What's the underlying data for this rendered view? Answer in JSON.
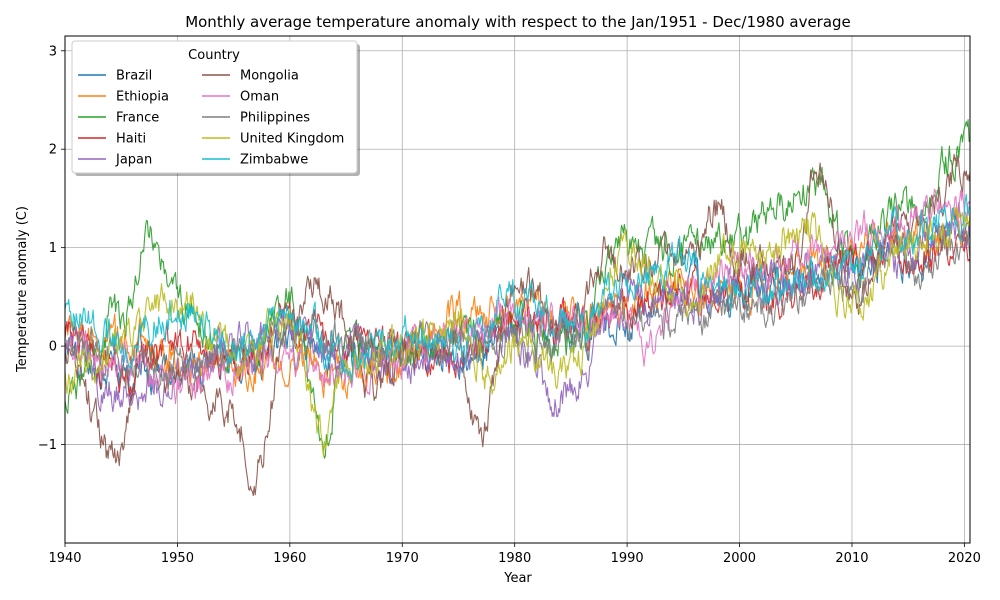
{
  "chart_data": {
    "type": "line",
    "title": "Monthly average temperature anomaly with respect to the Jan/1951 - Dec/1980 average",
    "xlabel": "Year",
    "ylabel": "Temperature anomaly (C)",
    "xlim": [
      1940,
      2020.5
    ],
    "ylim": [
      -2,
      3.15
    ],
    "xticks": [
      1940,
      1950,
      1960,
      1970,
      1980,
      1990,
      2000,
      2010,
      2020
    ],
    "yticks": [
      -1,
      0,
      1,
      2,
      3
    ],
    "grid": true,
    "legend": {
      "title": "Country",
      "position": "top-left",
      "columns": 2
    },
    "series": [
      {
        "name": "Brazil",
        "color": "#1f77b4",
        "keypoints": [
          [
            1940,
            -0.1
          ],
          [
            1945,
            -0.3
          ],
          [
            1950,
            -0.25
          ],
          [
            1955,
            -0.2
          ],
          [
            1960,
            0.05
          ],
          [
            1965,
            -0.15
          ],
          [
            1970,
            -0.05
          ],
          [
            1975,
            -0.15
          ],
          [
            1980,
            0.1
          ],
          [
            1985,
            0.15
          ],
          [
            1990,
            0.3
          ],
          [
            1995,
            0.6
          ],
          [
            2000,
            0.55
          ],
          [
            2005,
            0.75
          ],
          [
            2010,
            0.85
          ],
          [
            2015,
            0.9
          ],
          [
            2020,
            1.2
          ]
        ]
      },
      {
        "name": "Ethiopia",
        "color": "#ff7f0e",
        "keypoints": [
          [
            1940,
            0.2
          ],
          [
            1945,
            0.1
          ],
          [
            1950,
            -0.1
          ],
          [
            1955,
            -0.2
          ],
          [
            1960,
            -0.1
          ],
          [
            1965,
            -0.3
          ],
          [
            1970,
            -0.2
          ],
          [
            1975,
            0.3
          ],
          [
            1980,
            0.4
          ],
          [
            1985,
            0.3
          ],
          [
            1990,
            0.4
          ],
          [
            1995,
            0.6
          ],
          [
            2000,
            0.6
          ],
          [
            2005,
            0.8
          ],
          [
            2010,
            1.0
          ],
          [
            2015,
            1.1
          ],
          [
            2020,
            1.2
          ]
        ]
      },
      {
        "name": "France",
        "color": "#2ca02c",
        "keypoints": [
          [
            1940,
            -0.5
          ],
          [
            1945,
            0.3
          ],
          [
            1947.5,
            1.2
          ],
          [
            1950,
            0.4
          ],
          [
            1955,
            -0.2
          ],
          [
            1960,
            0.4
          ],
          [
            1963,
            -0.9
          ],
          [
            1965,
            0.0
          ],
          [
            1970,
            -0.1
          ],
          [
            1975,
            0.1
          ],
          [
            1980,
            0.2
          ],
          [
            1985,
            0.0
          ],
          [
            1990,
            1.0
          ],
          [
            1995,
            1.0
          ],
          [
            2000,
            1.1
          ],
          [
            2003,
            1.4
          ],
          [
            2007,
            1.6
          ],
          [
            2010,
            0.9
          ],
          [
            2015,
            1.4
          ],
          [
            2020,
            2.0
          ]
        ]
      },
      {
        "name": "Haiti",
        "color": "#d62728",
        "keypoints": [
          [
            1940,
            0.1
          ],
          [
            1945,
            -0.3
          ],
          [
            1950,
            0.1
          ],
          [
            1955,
            -0.2
          ],
          [
            1960,
            0.3
          ],
          [
            1965,
            0.0
          ],
          [
            1970,
            0.0
          ],
          [
            1975,
            -0.2
          ],
          [
            1980,
            0.2
          ],
          [
            1985,
            0.2
          ],
          [
            1990,
            0.4
          ],
          [
            1995,
            0.5
          ],
          [
            2000,
            0.6
          ],
          [
            2005,
            0.6
          ],
          [
            2010,
            0.9
          ],
          [
            2015,
            0.9
          ],
          [
            2020,
            1.0
          ]
        ]
      },
      {
        "name": "Japan",
        "color": "#9467bd",
        "keypoints": [
          [
            1940,
            0.0
          ],
          [
            1945,
            -0.5
          ],
          [
            1950,
            -0.3
          ],
          [
            1955,
            0.1
          ],
          [
            1960,
            0.2
          ],
          [
            1965,
            -0.1
          ],
          [
            1970,
            -0.2
          ],
          [
            1975,
            -0.1
          ],
          [
            1980,
            0.0
          ],
          [
            1984,
            -0.5
          ],
          [
            1990,
            0.5
          ],
          [
            1995,
            0.4
          ],
          [
            2000,
            0.7
          ],
          [
            2005,
            0.6
          ],
          [
            2010,
            0.8
          ],
          [
            2015,
            0.9
          ],
          [
            2020,
            1.3
          ]
        ]
      },
      {
        "name": "Mongolia",
        "color": "#8c564b",
        "keypoints": [
          [
            1940,
            0.0
          ],
          [
            1944.5,
            -1.2
          ],
          [
            1947,
            0.0
          ],
          [
            1950,
            -0.3
          ],
          [
            1955,
            -0.6
          ],
          [
            1957,
            -1.3
          ],
          [
            1960,
            0.4
          ],
          [
            1963,
            0.6
          ],
          [
            1965,
            0.2
          ],
          [
            1968,
            -0.5
          ],
          [
            1970,
            -0.1
          ],
          [
            1975,
            0.0
          ],
          [
            1977,
            -0.8
          ],
          [
            1980,
            0.6
          ],
          [
            1985,
            0.2
          ],
          [
            1988,
            1.0
          ],
          [
            1990,
            0.8
          ],
          [
            1995,
            0.9
          ],
          [
            1998,
            1.4
          ],
          [
            2000,
            0.9
          ],
          [
            2005,
            0.8
          ],
          [
            2007,
            1.8
          ],
          [
            2010,
            0.5
          ],
          [
            2015,
            1.2
          ],
          [
            2020,
            1.8
          ]
        ]
      },
      {
        "name": "Oman",
        "color": "#e377c2",
        "keypoints": [
          [
            1940,
            -0.1
          ],
          [
            1945,
            -0.2
          ],
          [
            1950,
            -0.4
          ],
          [
            1955,
            -0.3
          ],
          [
            1960,
            -0.1
          ],
          [
            1965,
            -0.3
          ],
          [
            1970,
            -0.1
          ],
          [
            1975,
            0.2
          ],
          [
            1980,
            0.3
          ],
          [
            1985,
            0.2
          ],
          [
            1990,
            0.4
          ],
          [
            1992,
            0.0
          ],
          [
            1995,
            0.5
          ],
          [
            2000,
            0.8
          ],
          [
            2005,
            0.9
          ],
          [
            2010,
            1.1
          ],
          [
            2015,
            1.3
          ],
          [
            2020,
            1.4
          ]
        ]
      },
      {
        "name": "Philippines",
        "color": "#7f7f7f",
        "keypoints": [
          [
            1940,
            0.0
          ],
          [
            1945,
            -0.1
          ],
          [
            1950,
            -0.2
          ],
          [
            1955,
            -0.1
          ],
          [
            1960,
            0.1
          ],
          [
            1965,
            0.0
          ],
          [
            1970,
            0.0
          ],
          [
            1975,
            0.1
          ],
          [
            1980,
            0.1
          ],
          [
            1985,
            0.0
          ],
          [
            1990,
            0.3
          ],
          [
            1995,
            0.3
          ],
          [
            2000,
            0.4
          ],
          [
            2005,
            0.5
          ],
          [
            2010,
            0.7
          ],
          [
            2015,
            0.8
          ],
          [
            2020,
            1.0
          ]
        ]
      },
      {
        "name": "United Kingdom",
        "color": "#bcbd22",
        "keypoints": [
          [
            1940,
            -0.3
          ],
          [
            1945,
            0.1
          ],
          [
            1950,
            0.5
          ],
          [
            1955,
            -0.1
          ],
          [
            1960,
            0.3
          ],
          [
            1963,
            -0.8
          ],
          [
            1965,
            -0.2
          ],
          [
            1970,
            0.0
          ],
          [
            1975,
            0.3
          ],
          [
            1978,
            -0.3
          ],
          [
            1980,
            0.0
          ],
          [
            1985,
            -0.2
          ],
          [
            1990,
            1.0
          ],
          [
            1995,
            0.5
          ],
          [
            2000,
            0.9
          ],
          [
            2006,
            1.2
          ],
          [
            2010,
            0.4
          ],
          [
            2015,
            1.0
          ],
          [
            2020,
            1.3
          ]
        ]
      },
      {
        "name": "Zimbabwe",
        "color": "#17becf",
        "keypoints": [
          [
            1940,
            0.3
          ],
          [
            1945,
            0.0
          ],
          [
            1950,
            0.4
          ],
          [
            1955,
            0.0
          ],
          [
            1960,
            0.4
          ],
          [
            1965,
            -0.2
          ],
          [
            1970,
            0.1
          ],
          [
            1975,
            0.0
          ],
          [
            1980,
            0.5
          ],
          [
            1985,
            0.2
          ],
          [
            1990,
            0.7
          ],
          [
            1995,
            0.8
          ],
          [
            2000,
            0.6
          ],
          [
            2005,
            0.7
          ],
          [
            2010,
            0.8
          ],
          [
            2015,
            1.2
          ],
          [
            2020,
            1.3
          ]
        ]
      }
    ]
  }
}
